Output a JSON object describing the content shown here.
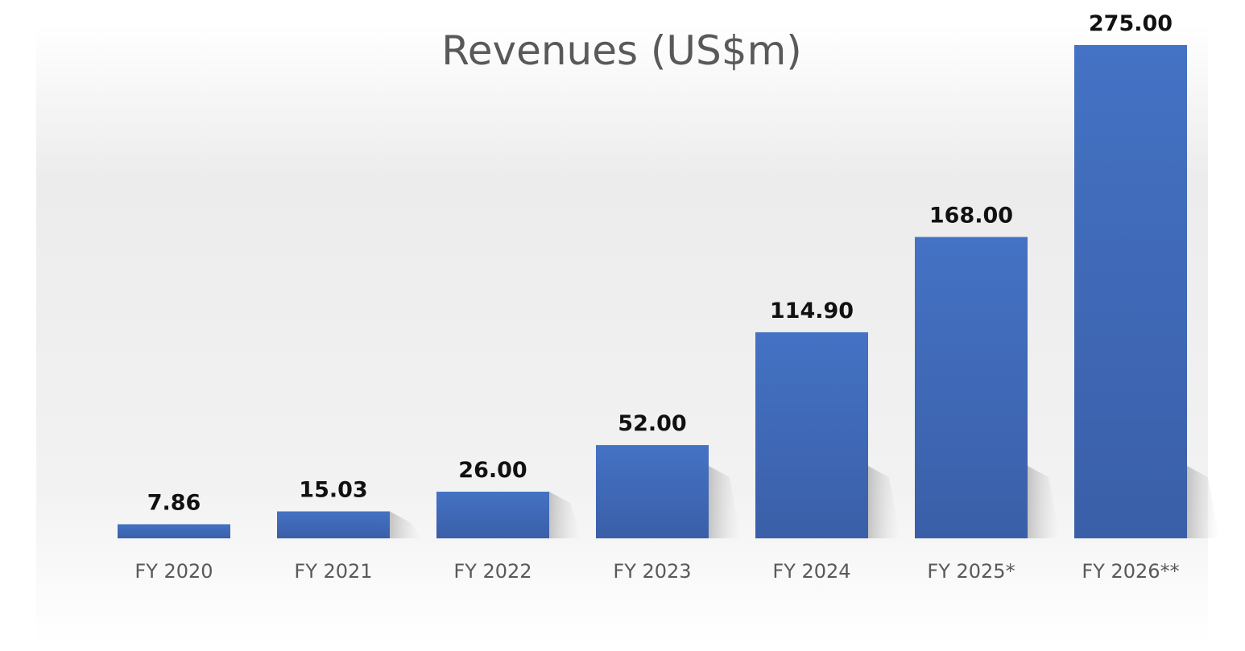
{
  "chart_data": {
    "type": "bar",
    "title": "Revenues (US$m)",
    "categories": [
      "FY 2020",
      "FY 2021",
      "FY 2022",
      "FY 2023",
      "FY 2024",
      "FY 2025*",
      "FY 2026**"
    ],
    "values": [
      7.86,
      15.03,
      26.0,
      52.0,
      114.9,
      168.0,
      275.0
    ],
    "value_labels": [
      "7.86",
      "15.03",
      "26.00",
      "52.00",
      "114.90",
      "168.00",
      "275.00"
    ],
    "xlabel": "",
    "ylabel": "",
    "ylim": [
      0,
      275
    ],
    "grid": false,
    "legend": "none",
    "colors": {
      "bar_top": "#4472C4",
      "bar_bottom": "#3A5FA8",
      "title": "#595959",
      "tick": "#595959",
      "label": "#111111",
      "plot_bg_top": "#E6E6E6",
      "plot_bg_bottom": "#FFFFFF"
    }
  }
}
